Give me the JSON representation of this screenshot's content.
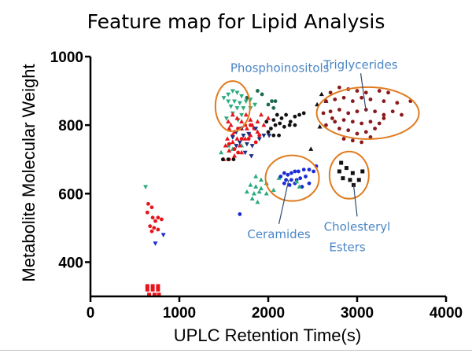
{
  "chart_data": {
    "type": "scatter",
    "title": "Feature map for Lipid Analysis",
    "xlabel": "UPLC Retention Time(s)",
    "ylabel": "Metabolite Molecular Weight",
    "xlim": [
      0,
      4000
    ],
    "ylim": [
      300,
      1000
    ],
    "x_ticks": [
      "0",
      "1000",
      "2000",
      "3000",
      "4000"
    ],
    "y_ticks": [
      "400",
      "600",
      "800",
      "1000"
    ],
    "grid": false,
    "legend": "none",
    "colors": {
      "red": "#e8141b",
      "darkred": "#8b1a1a",
      "teal": "#2bab7e",
      "darkgreen": "#1e6a4c",
      "blue": "#1b2bd6",
      "navy": "#1d2e80",
      "black": "#111111",
      "circle": "#e07b1e",
      "annotation": "#4a86c5"
    },
    "series": [
      {
        "color": "red",
        "marker": "square",
        "points": [
          [
            640,
            330
          ],
          [
            700,
            330
          ],
          [
            760,
            330
          ],
          [
            640,
            320
          ],
          [
            700,
            320
          ],
          [
            760,
            320
          ],
          [
            660,
            305
          ],
          [
            720,
            305
          ],
          [
            770,
            305
          ]
        ]
      },
      {
        "color": "red",
        "marker": "circle",
        "points": [
          [
            650,
            570
          ],
          [
            690,
            560
          ],
          [
            640,
            545
          ],
          [
            700,
            530
          ],
          [
            760,
            530
          ],
          [
            800,
            525
          ],
          [
            730,
            520
          ],
          [
            670,
            505
          ],
          [
            715,
            500
          ],
          [
            760,
            495
          ],
          [
            690,
            490
          ]
        ]
      },
      {
        "color": "blue",
        "marker": "triangle-down",
        "points": [
          [
            820,
            480
          ],
          [
            730,
            455
          ]
        ]
      },
      {
        "color": "teal",
        "marker": "triangle-down",
        "points": [
          [
            620,
            620
          ],
          [
            1500,
            880
          ],
          [
            1550,
            890
          ],
          [
            1600,
            900
          ],
          [
            1650,
            895
          ],
          [
            1700,
            885
          ],
          [
            1550,
            870
          ],
          [
            1620,
            870
          ],
          [
            1680,
            865
          ],
          [
            1750,
            870
          ],
          [
            1800,
            875
          ],
          [
            1580,
            855
          ],
          [
            1650,
            850
          ],
          [
            1720,
            850
          ],
          [
            1600,
            835
          ],
          [
            1700,
            830
          ],
          [
            1800,
            850
          ],
          [
            1850,
            860
          ],
          [
            1530,
            820
          ],
          [
            1660,
            815
          ]
        ]
      },
      {
        "color": "teal",
        "marker": "triangle-up",
        "points": [
          [
            1470,
            720
          ],
          [
            1550,
            740
          ],
          [
            1600,
            730
          ],
          [
            1700,
            740
          ],
          [
            1860,
            650
          ],
          [
            1920,
            640
          ],
          [
            1980,
            630
          ],
          [
            1800,
            625
          ],
          [
            1860,
            620
          ],
          [
            1920,
            615
          ],
          [
            1760,
            605
          ],
          [
            1840,
            600
          ],
          [
            1900,
            605
          ],
          [
            1980,
            600
          ],
          [
            1820,
            585
          ],
          [
            1880,
            575
          ],
          [
            2060,
            610
          ],
          [
            2120,
            645
          ]
        ]
      },
      {
        "color": "red",
        "marker": "triangle-up",
        "points": [
          [
            1500,
            700
          ],
          [
            1540,
            760
          ],
          [
            1560,
            790
          ],
          [
            1520,
            740
          ],
          [
            1580,
            800
          ],
          [
            1620,
            780
          ],
          [
            1600,
            750
          ],
          [
            1650,
            820
          ],
          [
            1700,
            810
          ],
          [
            1750,
            830
          ],
          [
            1800,
            815
          ],
          [
            1550,
            810
          ],
          [
            1600,
            830
          ],
          [
            1700,
            790
          ],
          [
            1760,
            790
          ],
          [
            1820,
            800
          ],
          [
            1880,
            810
          ],
          [
            1920,
            830
          ],
          [
            1950,
            800
          ],
          [
            2000,
            820
          ],
          [
            1650,
            760
          ],
          [
            1740,
            760
          ],
          [
            1680,
            740
          ],
          [
            1800,
            770
          ],
          [
            1880,
            780
          ],
          [
            1560,
            725
          ],
          [
            1620,
            710
          ],
          [
            1700,
            720
          ]
        ]
      },
      {
        "color": "red",
        "marker": "circle",
        "points": [
          [
            1560,
            700
          ],
          [
            1600,
            770
          ],
          [
            1620,
            730
          ],
          [
            1660,
            790
          ],
          [
            1700,
            760
          ],
          [
            1740,
            800
          ],
          [
            1780,
            760
          ],
          [
            1800,
            800
          ],
          [
            1840,
            790
          ],
          [
            1860,
            750
          ],
          [
            1900,
            770
          ],
          [
            1660,
            720
          ],
          [
            1560,
            745
          ]
        ]
      },
      {
        "color": "navy",
        "marker": "triangle-down",
        "points": [
          [
            1640,
            780
          ],
          [
            1700,
            790
          ],
          [
            1720,
            770
          ],
          [
            1780,
            775
          ],
          [
            1760,
            745
          ],
          [
            1820,
            740
          ],
          [
            1860,
            790
          ],
          [
            1900,
            760
          ],
          [
            1950,
            770
          ],
          [
            1680,
            750
          ],
          [
            1740,
            720
          ],
          [
            1810,
            710
          ],
          [
            2010,
            770
          ],
          [
            1600,
            765
          ],
          [
            1640,
            740
          ]
        ]
      },
      {
        "color": "black",
        "marker": "circle",
        "points": [
          [
            1490,
            700
          ],
          [
            1550,
            700
          ],
          [
            1610,
            700
          ],
          [
            1980,
            810
          ],
          [
            2030,
            790
          ],
          [
            2060,
            815
          ],
          [
            2100,
            830
          ],
          [
            2150,
            820
          ],
          [
            2200,
            830
          ],
          [
            2250,
            810
          ],
          [
            2300,
            825
          ],
          [
            2350,
            830
          ],
          [
            2400,
            835
          ],
          [
            2080,
            800
          ],
          [
            2130,
            805
          ],
          [
            2180,
            795
          ],
          [
            2240,
            800
          ],
          [
            2300,
            800
          ],
          [
            2000,
            780
          ],
          [
            2060,
            770
          ],
          [
            2120,
            770
          ]
        ]
      },
      {
        "color": "darkgreen",
        "marker": "circle",
        "points": [
          [
            1760,
            880
          ],
          [
            1880,
            900
          ],
          [
            1930,
            890
          ],
          [
            2000,
            860
          ],
          [
            2040,
            870
          ],
          [
            2080,
            870
          ],
          [
            2060,
            850
          ]
        ]
      },
      {
        "color": "black",
        "marker": "triangle-up",
        "points": [
          [
            2550,
            860
          ],
          [
            2600,
            890
          ],
          [
            2580,
            795
          ],
          [
            2650,
            870
          ],
          [
            2480,
            730
          ]
        ]
      },
      {
        "color": "blue",
        "marker": "circle",
        "points": [
          [
            2140,
            650
          ],
          [
            2180,
            660
          ],
          [
            2220,
            655
          ],
          [
            2260,
            660
          ],
          [
            2300,
            665
          ],
          [
            2340,
            665
          ],
          [
            2400,
            670
          ],
          [
            2460,
            670
          ],
          [
            2510,
            665
          ],
          [
            2200,
            640
          ],
          [
            2260,
            640
          ],
          [
            2320,
            640
          ],
          [
            2360,
            645
          ],
          [
            2420,
            650
          ],
          [
            2180,
            630
          ],
          [
            2240,
            625
          ],
          [
            2300,
            630
          ],
          [
            2380,
            620
          ],
          [
            2460,
            630
          ],
          [
            1680,
            540
          ],
          [
            2540,
            680
          ]
        ]
      },
      {
        "color": "darkred",
        "marker": "circle",
        "points": [
          [
            2700,
            895
          ],
          [
            2800,
            910
          ],
          [
            2900,
            905
          ],
          [
            3000,
            900
          ],
          [
            3100,
            895
          ],
          [
            3250,
            900
          ],
          [
            3350,
            895
          ],
          [
            2650,
            870
          ],
          [
            2750,
            875
          ],
          [
            2850,
            880
          ],
          [
            2950,
            870
          ],
          [
            3050,
            880
          ],
          [
            3150,
            875
          ],
          [
            3300,
            870
          ],
          [
            3450,
            865
          ],
          [
            3600,
            870
          ],
          [
            2700,
            840
          ],
          [
            2800,
            845
          ],
          [
            2900,
            835
          ],
          [
            3000,
            840
          ],
          [
            3100,
            845
          ],
          [
            3200,
            840
          ],
          [
            3300,
            830
          ],
          [
            3400,
            840
          ],
          [
            2750,
            810
          ],
          [
            2850,
            815
          ],
          [
            2950,
            810
          ],
          [
            3050,
            805
          ],
          [
            3150,
            810
          ],
          [
            3250,
            805
          ],
          [
            2650,
            800
          ],
          [
            2800,
            790
          ],
          [
            2900,
            785
          ],
          [
            3000,
            775
          ],
          [
            3100,
            780
          ],
          [
            3200,
            790
          ],
          [
            2850,
            760
          ],
          [
            2950,
            755
          ],
          [
            3050,
            750
          ],
          [
            3150,
            765
          ],
          [
            3300,
            820
          ],
          [
            3500,
            830
          ],
          [
            2720,
            820
          ],
          [
            2620,
            835
          ]
        ]
      },
      {
        "color": "black",
        "marker": "square",
        "points": [
          [
            2820,
            690
          ],
          [
            2880,
            675
          ],
          [
            2800,
            665
          ],
          [
            2950,
            660
          ],
          [
            3060,
            665
          ],
          [
            2920,
            640
          ],
          [
            2960,
            625
          ],
          [
            3020,
            640
          ],
          [
            2840,
            645
          ]
        ]
      },
      {
        "color": "teal",
        "marker": "triangle-up",
        "points": [
          [
            2320,
            635
          ],
          [
            2350,
            620
          ]
        ]
      }
    ],
    "annotations": [
      {
        "text": "Phosphoinositols",
        "label_x": 2130,
        "label_y": 955,
        "circle": [
          1600,
          855
        ],
        "arrow_to": null
      },
      {
        "text": "Triglycerides",
        "label_x": 3040,
        "label_y": 965,
        "circle": [
          3120,
          835
        ],
        "arrow_to": [
          3100,
          840
        ]
      },
      {
        "text": "Ceramides",
        "label_x": 2120,
        "label_y": 470,
        "circle": [
          2270,
          645
        ],
        "arrow_to": [
          2230,
          640
        ]
      },
      {
        "text": "Cholesteryl",
        "label_x": 3000,
        "label_y": 492,
        "circle": [
          2910,
          654
        ],
        "arrow_to": [
          2960,
          625
        ]
      },
      {
        "text": "Esters",
        "label_x": 2890,
        "label_y": 432,
        "circle": null,
        "arrow_to": null
      }
    ]
  }
}
